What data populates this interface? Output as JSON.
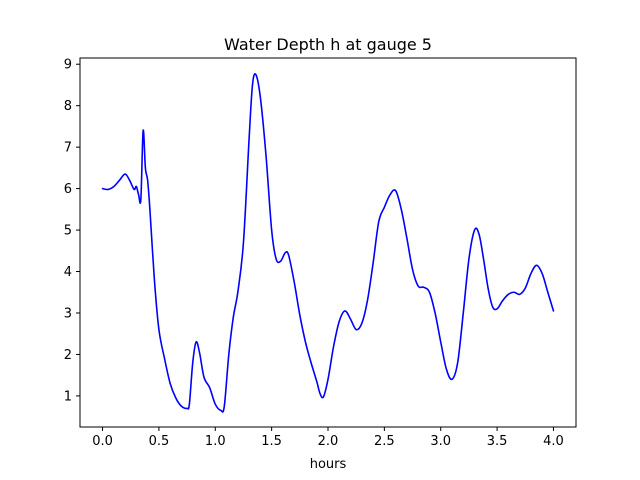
{
  "chart_data": {
    "type": "line",
    "title": "Water Depth h at gauge 5",
    "xlabel": "hours",
    "ylabel": "",
    "xlim": [
      -0.2,
      4.2
    ],
    "ylim": [
      0.25,
      9.15
    ],
    "xticks": [
      0.0,
      0.5,
      1.0,
      1.5,
      2.0,
      2.5,
      3.0,
      3.5,
      4.0
    ],
    "xtick_labels": [
      "0.0",
      "0.5",
      "1.0",
      "1.5",
      "2.0",
      "2.5",
      "3.0",
      "3.5",
      "4.0"
    ],
    "yticks": [
      1,
      2,
      3,
      4,
      5,
      6,
      7,
      8,
      9
    ],
    "ytick_labels": [
      "1",
      "2",
      "3",
      "4",
      "5",
      "6",
      "7",
      "8",
      "9"
    ],
    "grid": false,
    "legend": "none",
    "series": [
      {
        "color": "#0000ff",
        "x": [
          0.0,
          0.05,
          0.1,
          0.15,
          0.2,
          0.24,
          0.28,
          0.3,
          0.32,
          0.34,
          0.36,
          0.38,
          0.4,
          0.42,
          0.46,
          0.5,
          0.55,
          0.6,
          0.65,
          0.7,
          0.75,
          0.77,
          0.8,
          0.83,
          0.86,
          0.9,
          0.95,
          1.0,
          1.05,
          1.08,
          1.12,
          1.16,
          1.2,
          1.25,
          1.3,
          1.33,
          1.36,
          1.4,
          1.45,
          1.5,
          1.54,
          1.58,
          1.62,
          1.65,
          1.7,
          1.75,
          1.8,
          1.85,
          1.9,
          1.93,
          1.96,
          2.0,
          2.05,
          2.1,
          2.15,
          2.2,
          2.25,
          2.3,
          2.35,
          2.4,
          2.45,
          2.5,
          2.55,
          2.6,
          2.65,
          2.7,
          2.75,
          2.8,
          2.85,
          2.9,
          2.95,
          3.0,
          3.05,
          3.1,
          3.15,
          3.2,
          3.25,
          3.3,
          3.34,
          3.38,
          3.42,
          3.46,
          3.5,
          3.55,
          3.6,
          3.65,
          3.7,
          3.75,
          3.8,
          3.85,
          3.9,
          3.95,
          4.0
        ],
        "y": [
          6.0,
          5.98,
          6.05,
          6.2,
          6.35,
          6.2,
          5.98,
          6.05,
          5.85,
          5.75,
          7.4,
          6.5,
          6.2,
          5.5,
          3.8,
          2.6,
          1.9,
          1.3,
          0.95,
          0.75,
          0.7,
          0.8,
          1.8,
          2.3,
          2.05,
          1.45,
          1.2,
          0.8,
          0.65,
          0.75,
          2.0,
          2.9,
          3.5,
          4.7,
          7.2,
          8.5,
          8.75,
          8.2,
          6.8,
          5.0,
          4.3,
          4.25,
          4.45,
          4.4,
          3.75,
          2.95,
          2.3,
          1.8,
          1.35,
          1.05,
          0.98,
          1.4,
          2.2,
          2.8,
          3.05,
          2.85,
          2.6,
          2.75,
          3.3,
          4.2,
          5.2,
          5.55,
          5.85,
          5.95,
          5.5,
          4.8,
          4.05,
          3.65,
          3.62,
          3.5,
          3.0,
          2.3,
          1.65,
          1.4,
          1.8,
          3.0,
          4.3,
          5.0,
          4.9,
          4.3,
          3.6,
          3.15,
          3.1,
          3.3,
          3.45,
          3.5,
          3.45,
          3.6,
          3.95,
          4.15,
          3.95,
          3.5,
          3.05
        ]
      }
    ]
  }
}
